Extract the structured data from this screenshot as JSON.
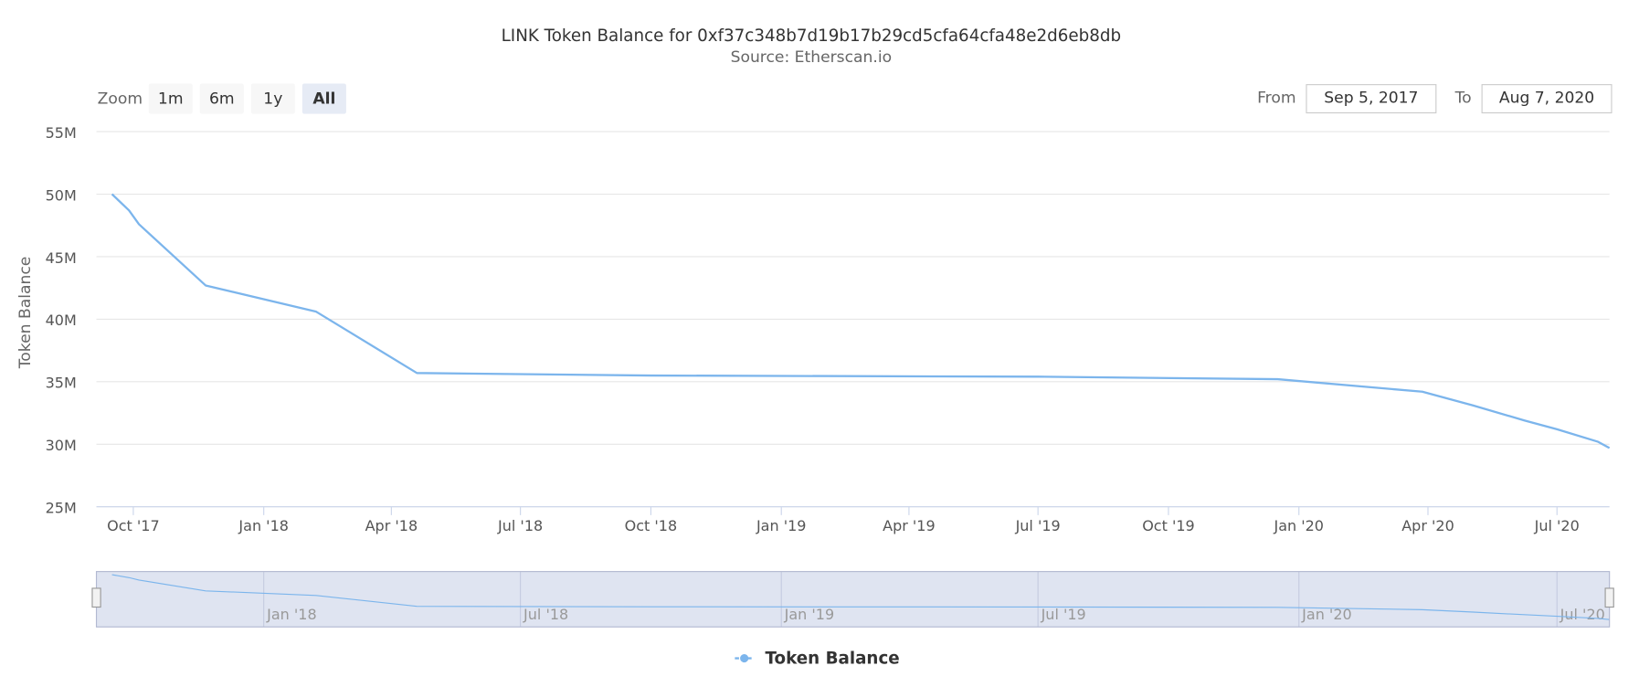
{
  "chart_data": {
    "type": "line",
    "title": "LINK Token Balance for 0xf37c348b7d19b17b29cd5cfa64cfa48e2d6eb8db",
    "subtitle": "Source: Etherscan.io",
    "y_axis_title": "Token Balance",
    "x": [
      "2017-09-16",
      "2017-09-28",
      "2017-10-05",
      "2017-11-21",
      "2018-02-07",
      "2018-04-19",
      "2018-10-01",
      "2019-07-01",
      "2019-12-17",
      "2020-03-28",
      "2020-05-03",
      "2020-06-08",
      "2020-07-01",
      "2020-07-30",
      "2020-08-07"
    ],
    "series": [
      {
        "name": "Token Balance",
        "color": "#7cb5ec",
        "values": [
          50000000,
          48700000,
          47600000,
          42700000,
          40600000,
          35700000,
          35500000,
          35400000,
          35200000,
          34200000,
          33100000,
          31900000,
          31200000,
          30200000,
          29700000
        ]
      }
    ],
    "xlim": [
      "2017-09-05",
      "2020-08-07"
    ],
    "xticks": [
      {
        "value": "2017-10-01",
        "label": "Oct '17"
      },
      {
        "value": "2018-01-01",
        "label": "Jan '18"
      },
      {
        "value": "2018-04-01",
        "label": "Apr '18"
      },
      {
        "value": "2018-07-01",
        "label": "Jul '18"
      },
      {
        "value": "2018-10-01",
        "label": "Oct '18"
      },
      {
        "value": "2019-01-01",
        "label": "Jan '19"
      },
      {
        "value": "2019-04-01",
        "label": "Apr '19"
      },
      {
        "value": "2019-07-01",
        "label": "Jul '19"
      },
      {
        "value": "2019-10-01",
        "label": "Oct '19"
      },
      {
        "value": "2020-01-01",
        "label": "Jan '20"
      },
      {
        "value": "2020-04-01",
        "label": "Apr '20"
      },
      {
        "value": "2020-07-01",
        "label": "Jul '20"
      }
    ],
    "ylim": [
      25000000,
      55000000
    ],
    "yticks": [
      {
        "value": 25000000,
        "label": "25M"
      },
      {
        "value": 30000000,
        "label": "30M"
      },
      {
        "value": 35000000,
        "label": "35M"
      },
      {
        "value": 40000000,
        "label": "40M"
      },
      {
        "value": 45000000,
        "label": "45M"
      },
      {
        "value": 50000000,
        "label": "50M"
      },
      {
        "value": 55000000,
        "label": "55M"
      }
    ],
    "grid": true,
    "navigator_xticks": [
      {
        "value": "2018-01-01",
        "label": "Jan '18"
      },
      {
        "value": "2018-07-01",
        "label": "Jul '18"
      },
      {
        "value": "2019-01-01",
        "label": "Jan '19"
      },
      {
        "value": "2019-07-01",
        "label": "Jul '19"
      },
      {
        "value": "2020-01-01",
        "label": "Jan '20"
      },
      {
        "value": "2020-07-01",
        "label": "Jul '20"
      }
    ],
    "range_selector": {
      "label": "Zoom",
      "buttons": [
        "1m",
        "6m",
        "1y",
        "All"
      ],
      "selected": 3,
      "from_label": "From",
      "from": "Sep 5, 2017",
      "to_label": "To",
      "to": "Aug 7, 2020"
    },
    "legend": "bottom"
  }
}
